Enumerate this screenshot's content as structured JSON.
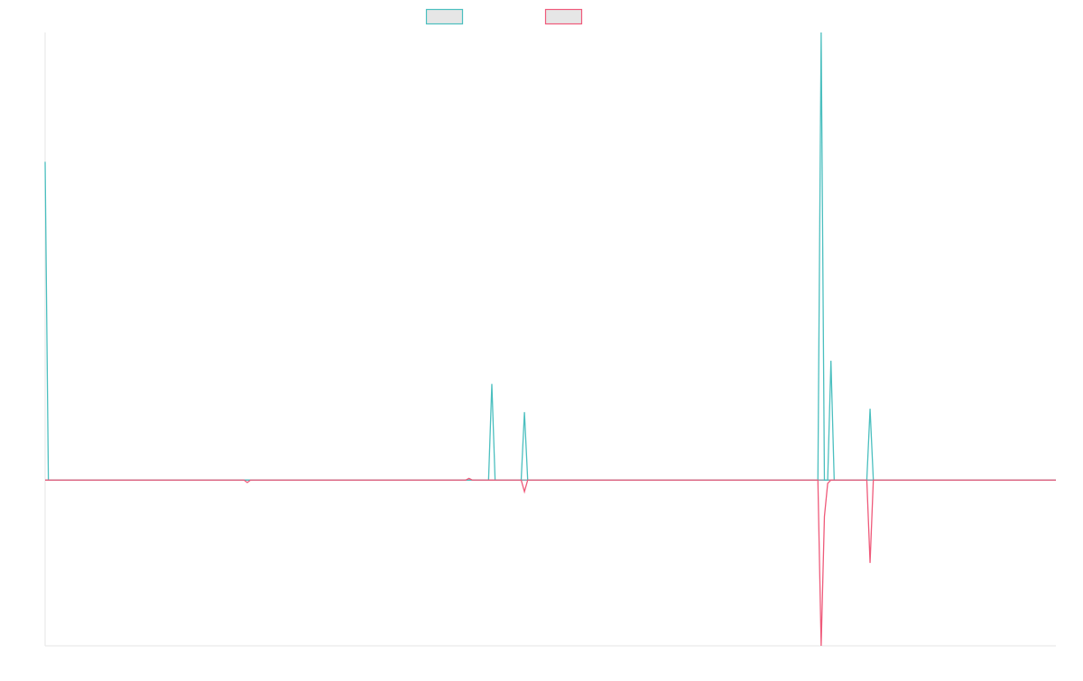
{
  "chart_data": {
    "type": "line",
    "title": "",
    "xlabel": "",
    "ylabel": "",
    "x_range": [
      0,
      310
    ],
    "ylim": [
      -1.0,
      2.7
    ],
    "grid": false,
    "legend_position": "top-center",
    "series": [
      {
        "color": "#4bbfbf",
        "points": [
          [
            0,
            1.92
          ],
          [
            1,
            0
          ],
          [
            62,
            0
          ],
          [
            131,
            0
          ],
          [
            136,
            0
          ],
          [
            137,
            0.58
          ],
          [
            138,
            0
          ],
          [
            146,
            0
          ],
          [
            147,
            0.41
          ],
          [
            148,
            0
          ],
          [
            237,
            0
          ],
          [
            238,
            2.7
          ],
          [
            239,
            0
          ],
          [
            240,
            0
          ],
          [
            241,
            0.72
          ],
          [
            242,
            0
          ],
          [
            252,
            0
          ],
          [
            253,
            0.43
          ],
          [
            254,
            0
          ],
          [
            310,
            0
          ]
        ]
      },
      {
        "color": "#ef5a7a",
        "points": [
          [
            0,
            0
          ],
          [
            61,
            0
          ],
          [
            62,
            -0.015
          ],
          [
            63,
            0
          ],
          [
            129,
            0
          ],
          [
            130,
            0.01
          ],
          [
            131,
            0
          ],
          [
            146,
            0
          ],
          [
            147,
            -0.07
          ],
          [
            148,
            0
          ],
          [
            237,
            0
          ],
          [
            238,
            -1.0
          ],
          [
            239,
            -0.22
          ],
          [
            240,
            -0.02
          ],
          [
            241,
            0
          ],
          [
            252,
            0
          ],
          [
            253,
            -0.5
          ],
          [
            254,
            0
          ],
          [
            310,
            0
          ]
        ]
      }
    ]
  }
}
